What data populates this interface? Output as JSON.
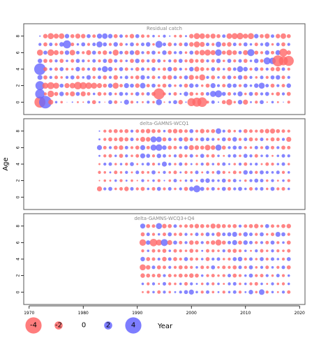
{
  "chart_data": {
    "type": "scatter",
    "description": "Bubble plots of residuals by year and age; red = negative, blue = positive, radius proportional to |residual|",
    "ylabel": "Age",
    "legend_title": "Year",
    "legend_values": [
      "-4",
      "-2",
      "0",
      "2",
      "4"
    ],
    "xlim": [
      1969,
      2021
    ],
    "x_ticks": [
      "1970",
      "1980",
      "1990",
      "2000",
      "2010",
      "2020"
    ],
    "ylim": [
      -1.5,
      9.5
    ],
    "y_ticks": [
      "0",
      "2",
      "4",
      "6",
      "8"
    ],
    "colors": {
      "negative": "#ff6666",
      "positive": "#6666ff",
      "frame": "#555555",
      "title": "#888888"
    },
    "panels": [
      {
        "title": "Residual catch",
        "year_start": 1972,
        "year_end": 2018,
        "ages": [
          0,
          1,
          2,
          3,
          4,
          5,
          6,
          7,
          8
        ],
        "residuals": [
          [
            -2.2,
            2.5,
            -1.0,
            0.5,
            -0.5,
            0.0,
            0.3,
            -0.4,
            -0.3,
            0.6,
            -0.8,
            0.4,
            -0.2,
            0.8,
            -0.7,
            0.3,
            1.0,
            -0.6,
            0.4,
            -0.4,
            0.6,
            -0.5,
            1.2,
            -0.3,
            0.5,
            0.8,
            -0.9,
            0.3,
            -1.6,
            -1.8,
            -1.9,
            -0.6,
            0.7,
            0.3,
            -0.8,
            -1.2,
            -0.5,
            0.9,
            -1.0,
            0.4,
            -0.6,
            0.8,
            -0.3,
            0.5,
            -0.4,
            0.2,
            -0.6
          ],
          [
            1.9,
            -0.6,
            -1.3,
            -0.8,
            0.9,
            -0.7,
            -1.0,
            0.8,
            -1.0,
            -0.7,
            0.5,
            -0.8,
            -0.6,
            0.7,
            -0.5,
            0.8,
            0.6,
            -0.5,
            0.8,
            -0.6,
            0.7,
            -0.8,
            -2.2,
            -0.6,
            0.5,
            -0.7,
            0.4,
            0.9,
            -0.8,
            -0.5,
            -0.7,
            0.7,
            1.2,
            1.4,
            0.8,
            -0.7,
            0.6,
            1.0,
            -0.5,
            0.8,
            -0.7,
            0.6,
            0.8,
            -0.5,
            -0.8,
            0.6,
            -0.8
          ],
          [
            1.8,
            -1.2,
            -1.4,
            -1.2,
            0.8,
            -1.0,
            -1.1,
            -1.5,
            -1.4,
            -1.3,
            -1.2,
            -1.0,
            -0.8,
            0.9,
            -1.2,
            -0.7,
            1.0,
            0.8,
            -0.9,
            1.1,
            -0.7,
            0.8,
            -0.6,
            -0.8,
            0.7,
            -0.5,
            0.6,
            -0.8,
            0.9,
            0.7,
            -0.5,
            -0.8,
            1.0,
            0.6,
            -0.7,
            0.9,
            0.8,
            -0.6,
            0.8,
            0.5,
            0.9,
            1.2,
            0.7,
            -0.8,
            0.6,
            -0.7,
            0.9
          ],
          [
            1.0,
            -0.8,
            0.6,
            -0.7,
            -0.5,
            0.6,
            0.8,
            -0.7,
            0.5,
            0.9,
            -0.6,
            0.7,
            -0.8,
            0.6,
            -0.9,
            0.5,
            0.7,
            -0.6,
            -0.8,
            0.9,
            0.6,
            -0.7,
            0.5,
            -0.8,
            -0.9,
            0.7,
            -0.6,
            0.8,
            -1.0,
            -0.7,
            -1.2,
            0.6,
            -0.8,
            0.5,
            -0.7,
            0.8,
            -0.6,
            0.9,
            -0.8,
            0.6,
            -0.5,
            0.7,
            -0.6,
            0.8,
            0.9,
            -0.7,
            0.6
          ],
          [
            2.3,
            -0.8,
            0.6,
            -0.7,
            0.8,
            -0.6,
            -0.5,
            0.9,
            -0.7,
            0.6,
            -0.8,
            0.7,
            1.2,
            0.9,
            -0.6,
            0.8,
            -0.7,
            0.5,
            -0.8,
            0.7,
            -0.6,
            0.8,
            -0.5,
            -0.7,
            0.9,
            -0.8,
            0.6,
            -0.5,
            0.9,
            -1.0,
            -0.8,
            -0.6,
            0.8,
            -0.7,
            0.5,
            -0.8,
            0.7,
            1.2,
            0.9,
            -0.6,
            0.8,
            -0.7,
            0.6,
            -0.8,
            -0.9,
            0.7,
            -0.6
          ],
          [
            0.9,
            -0.8,
            -0.7,
            0.6,
            -0.8,
            0.5,
            -0.7,
            0.8,
            0.6,
            -0.5,
            0.7,
            -0.6,
            0.8,
            -0.9,
            0.7,
            -0.6,
            0.5,
            -0.8,
            0.9,
            -0.7,
            0.6,
            -0.8,
            0.7,
            -0.5,
            0.6,
            -0.7,
            0.8,
            -0.6,
            -0.9,
            -0.7,
            -0.8,
            0.6,
            -0.7,
            0.9,
            -0.5,
            0.8,
            -0.6,
            0.7,
            -0.8,
            0.5,
            0.9,
            -0.7,
            1.4,
            1.3,
            -2.2,
            -1.8,
            -2.0
          ],
          [
            -1.2,
            0.8,
            -1.3,
            -1.0,
            -0.8,
            0.9,
            -1.1,
            0.7,
            -0.6,
            -1.0,
            0.8,
            -0.7,
            -0.9,
            0.6,
            -1.2,
            0.7,
            -0.8,
            0.9,
            -1.0,
            0.6,
            -0.7,
            0.8,
            -0.5,
            0.9,
            -0.8,
            0.6,
            0.7,
            -0.5,
            0.8,
            -0.9,
            -1.1,
            -1.2,
            -1.0,
            1.3,
            -0.8,
            -1.1,
            -0.9,
            0.7,
            -1.0,
            1.4,
            -0.8,
            -0.6,
            0.9,
            -0.7,
            1.0,
            -1.6,
            -0.9
          ],
          [
            0.6,
            -0.8,
            0.7,
            -0.6,
            0.9,
            1.6,
            -0.7,
            0.5,
            0.8,
            -0.6,
            0.7,
            1.2,
            0.8,
            -0.6,
            0.9,
            -0.7,
            0.5,
            0.8,
            -0.6,
            0.7,
            0.9,
            -0.5,
            1.4,
            0.7,
            -0.8,
            0.6,
            -0.7,
            0.8,
            -0.9,
            -1.2,
            -1.0,
            0.7,
            -0.6,
            1.1,
            -0.8,
            -0.9,
            0.7,
            -0.6,
            0.8,
            0.5,
            -0.7,
            0.6,
            0.9,
            -0.5,
            0.7,
            -0.8,
            0.6
          ],
          [
            0.3,
            -0.9,
            -1.2,
            -1.0,
            -1.1,
            0.9,
            -0.8,
            -1.0,
            -0.9,
            0.8,
            -0.7,
            1.0,
            1.1,
            0.9,
            -0.8,
            0.7,
            -0.6,
            -0.9,
            0.8,
            -0.7,
            -0.6,
            0.5,
            -0.4,
            0.6,
            0.3,
            -0.5,
            -0.6,
            0.4,
            -0.9,
            -1.2,
            -1.1,
            -0.9,
            -1.0,
            -0.8,
            0.7,
            -1.1,
            -1.2,
            -1.3,
            -1.0,
            -1.2,
            0.9,
            -0.8,
            -1.0,
            0.7,
            -0.9,
            -1.1,
            -0.8
          ]
        ]
      },
      {
        "title": "delta-GAMNS-WCQ1",
        "year_start": 1983,
        "year_end": 2018,
        "ages": [
          0,
          1,
          2,
          3,
          4,
          5,
          6,
          7,
          8
        ],
        "residuals": [
          [
            null,
            null,
            null,
            null,
            null,
            null,
            null,
            null,
            null,
            null,
            null,
            null,
            null,
            null,
            null,
            null,
            null,
            null,
            null,
            null,
            null,
            null,
            null,
            null,
            null,
            null,
            null,
            null,
            null,
            null,
            null,
            null,
            null,
            null,
            null,
            null
          ],
          [
            -1.0,
            0.6,
            0.8,
            -0.5,
            -0.7,
            -0.9,
            0.7,
            -0.6,
            -0.8,
            0.5,
            -0.7,
            0.8,
            -0.6,
            0.7,
            -0.5,
            0.6,
            -0.8,
            0.9,
            1.4,
            0.8,
            -0.6,
            0.7,
            -0.5,
            0.8,
            -0.7,
            0.6,
            0.8,
            0.5,
            -0.7,
            0.6,
            0.7,
            -0.5,
            0.8,
            -0.6,
            -0.7,
            0.5
          ],
          [
            -0.3,
            -0.5,
            -0.4,
            0.5,
            -0.6,
            0.4,
            -0.5,
            -0.3,
            0.6,
            -0.4,
            0.5,
            -0.6,
            0.3,
            -0.5,
            0.7,
            -0.4,
            0.5,
            0.6,
            -0.4,
            0.8,
            0.9,
            0.6,
            0.5,
            0.8,
            -0.6,
            0.7,
            0.4,
            -0.5,
            0.6,
            0.8,
            0.7,
            -0.5,
            0.6,
            -0.4,
            0.5,
            -0.6
          ],
          [
            -0.6,
            -0.5,
            0.4,
            -0.7,
            -0.5,
            0.6,
            -0.4,
            0.7,
            -0.6,
            -0.5,
            0.8,
            -0.4,
            0.6,
            -0.5,
            -0.7,
            0.4,
            -0.6,
            -0.5,
            0.7,
            -0.4,
            0.6,
            -0.5,
            0.8,
            -0.6,
            -0.4,
            -0.7,
            -0.5,
            0.9,
            0.7,
            -0.6,
            0.8,
            0.6,
            0.5,
            0.7,
            -0.6,
            0.5
          ],
          [
            -0.4,
            0.6,
            0.7,
            -0.5,
            0.5,
            -0.6,
            0.8,
            -0.4,
            0.5,
            0.7,
            -0.6,
            0.5,
            1.0,
            0.6,
            -0.5,
            0.7,
            -0.6,
            0.4,
            -0.5,
            0.6,
            -0.7,
            0.5,
            -0.6,
            0.7,
            0.4,
            -0.5,
            0.6,
            -0.7,
            0.5,
            0.6,
            -0.4,
            -0.7,
            -0.6,
            0.5,
            0.7,
            -0.5
          ],
          [
            0.4,
            -0.6,
            -0.7,
            0.5,
            -0.8,
            0.6,
            -0.5,
            -0.7,
            1.0,
            0.8,
            -0.6,
            0.9,
            0.7,
            -0.5,
            0.6,
            -0.8,
            -0.6,
            0.7,
            -0.5,
            0.8,
            -0.6,
            -0.7,
            0.5,
            -0.4,
            0.6,
            0.7,
            -0.5,
            0.8,
            0.6,
            -0.7,
            0.5,
            0.6,
            -0.4,
            0.5,
            0.7,
            0.6
          ],
          [
            1.0,
            -0.7,
            0.6,
            -0.8,
            -0.9,
            0.7,
            -0.6,
            -0.8,
            1.0,
            -0.7,
            1.2,
            1.3,
            0.9,
            -0.8,
            -0.7,
            0.6,
            0.8,
            -1.0,
            -0.9,
            -0.8,
            -1.1,
            -0.9,
            1.2,
            -0.8,
            0.6,
            0.8,
            0.7,
            -0.6,
            -0.5,
            0.7,
            -0.6,
            0.8,
            -0.7,
            0.6,
            -0.8,
            -0.7
          ],
          [
            0.4,
            -0.6,
            -0.8,
            -0.7,
            -0.9,
            -0.8,
            0.7,
            -0.6,
            -1.0,
            -0.9,
            1.2,
            1.1,
            -0.8,
            0.7,
            -0.6,
            0.8,
            -0.9,
            0.7,
            -0.6,
            0.8,
            0.7,
            0.6,
            -0.5,
            0.8,
            -0.7,
            0.9,
            -0.6,
            0.7,
            -0.8,
            -0.6,
            0.7,
            -0.5,
            -0.8,
            -0.7,
            0.6,
            -1.0
          ],
          [
            0.3,
            -0.6,
            -0.7,
            -0.8,
            -0.7,
            -0.8,
            0.6,
            -0.7,
            -0.8,
            -0.9,
            -0.8,
            -0.7,
            0.5,
            -0.8,
            -0.9,
            -0.8,
            -0.7,
            0.8,
            -0.6,
            -0.9,
            -0.7,
            -0.8,
            1.1,
            0.6,
            -0.7,
            -0.5,
            0.6,
            -0.8,
            -0.7,
            -0.6,
            -0.8,
            -0.9,
            -1.0,
            -0.8,
            -0.7,
            -0.6
          ]
        ]
      },
      {
        "title": "delta-GAMNS-WCQ3+Q4",
        "year_start": 1991,
        "year_end": 2018,
        "ages": [
          0,
          1,
          2,
          3,
          4,
          5,
          6,
          7,
          8
        ],
        "residuals": [
          [
            -0.4,
            -0.6,
            0.5,
            -0.7,
            0.6,
            -0.5,
            0.4,
            0.6,
            0.8,
            1.0,
            0.5,
            -0.6,
            0.7,
            -0.5,
            0.4,
            -0.6,
            0.5,
            0.7,
            -0.6,
            0.4,
            0.9,
            -0.5,
            1.1,
            -0.6,
            0.5,
            -0.4,
            0.6,
            -0.7
          ],
          [
            0.5,
            -0.6,
            0.6,
            -0.4,
            0.7,
            -0.6,
            -0.5,
            0.5,
            -0.7,
            0.6,
            0.4,
            -0.5,
            0.6,
            -0.6,
            0.5,
            -0.4,
            0.6,
            0.7,
            -0.5,
            0.5,
            -0.6,
            -0.7,
            0.5,
            -0.4,
            0.6,
            -0.5,
            -0.6,
            0.5
          ],
          [
            -0.9,
            -0.8,
            -0.7,
            -0.8,
            0.6,
            -0.7,
            -0.6,
            -0.8,
            -0.7,
            -0.9,
            -0.8,
            0.5,
            -0.6,
            -0.7,
            -0.5,
            -0.6,
            0.7,
            -0.8,
            -0.6,
            0.5,
            0.8,
            -0.6,
            -0.7,
            0.6,
            -0.5,
            0.7,
            -0.6,
            0.5
          ],
          [
            -1.2,
            -0.9,
            0.7,
            -0.8,
            -0.7,
            0.6,
            -0.6,
            -0.8,
            -0.7,
            -0.6,
            0.5,
            -0.7,
            -0.6,
            0.8,
            -0.5,
            -0.7,
            -0.6,
            -0.8,
            0.7,
            -0.6,
            0.8,
            -0.5,
            0.6,
            -0.7,
            0.5,
            -0.6,
            0.7,
            -0.8
          ],
          [
            0.9,
            -0.8,
            -0.7,
            0.6,
            -0.9,
            0.7,
            -0.8,
            -0.6,
            0.8,
            -0.7,
            -0.6,
            0.5,
            -0.8,
            0.6,
            0.7,
            -0.5,
            -0.6,
            0.8,
            0.9,
            -0.6,
            0.7,
            -0.5,
            0.8,
            -0.6,
            0.7,
            0.5,
            -0.6,
            0.8
          ],
          [
            -0.6,
            0.5,
            -0.7,
            -0.6,
            -0.8,
            0.5,
            -0.7,
            -0.6,
            -0.5,
            -0.8,
            -0.6,
            0.4,
            -0.7,
            -0.6,
            -0.5,
            0.6,
            -0.7,
            -0.8,
            -0.6,
            0.5,
            -0.4,
            0.6,
            -0.7,
            -0.5,
            0.6,
            -0.6,
            -0.5,
            -0.7
          ],
          [
            -1.3,
            0.9,
            -1.5,
            -1.2,
            1.4,
            -1.0,
            0.8,
            -0.7,
            0.6,
            -0.9,
            -0.8,
            0.6,
            -0.7,
            -0.9,
            -1.2,
            -0.8,
            0.7,
            1.0,
            -0.8,
            0.9,
            0.7,
            -0.6,
            0.6,
            -0.7,
            0.8,
            -0.6,
            0.5,
            -0.8
          ],
          [
            -0.8,
            0.7,
            -0.6,
            0.5,
            -0.7,
            0.8,
            -0.6,
            -0.7,
            0.6,
            -0.5,
            0.7,
            -0.6,
            0.8,
            0.6,
            -0.9,
            0.7,
            0.8,
            1.0,
            -0.6,
            0.9,
            0.7,
            -0.6,
            0.8,
            -0.5,
            -0.7,
            1.0,
            0.8,
            -0.6
          ],
          [
            1.0,
            -0.8,
            -0.7,
            1.2,
            -0.9,
            -0.8,
            0.7,
            -0.6,
            -0.7,
            -0.8,
            -0.9,
            -0.8,
            -0.7,
            -1.0,
            -0.9,
            -0.8,
            -0.7,
            -0.8,
            0.6,
            -0.7,
            -0.8,
            -0.9,
            -0.6,
            0.8,
            -0.7,
            -0.6,
            -0.8,
            -0.9
          ]
        ]
      }
    ]
  }
}
